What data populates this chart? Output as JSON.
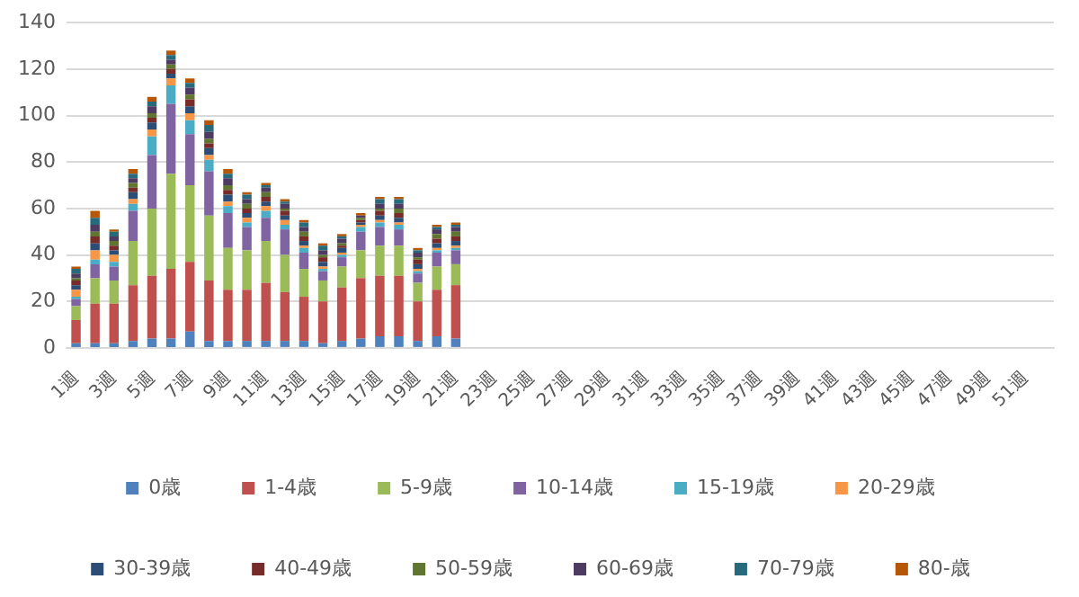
{
  "chart_data": {
    "type": "bar",
    "stacked": true,
    "grid": "y",
    "legend": "bottom",
    "categories": [
      "1週",
      null,
      "3週",
      null,
      "5週",
      null,
      "7週",
      null,
      "9週",
      null,
      "11週",
      null,
      "13週",
      null,
      "15週",
      null,
      "17週",
      null,
      "19週",
      null,
      "21週",
      null,
      "23週",
      null,
      "25週",
      null,
      "27週",
      null,
      "29週",
      null,
      "31週",
      null,
      "33週",
      null,
      "35週",
      null,
      "37週",
      null,
      "39週",
      null,
      "41週",
      null,
      "43週",
      null,
      "45週",
      null,
      "47週",
      null,
      "49週",
      null,
      "51週",
      null
    ],
    "ylim": [
      0,
      140
    ],
    "yticks": [
      0,
      20,
      40,
      60,
      80,
      100,
      120,
      140
    ],
    "series": [
      {
        "name": "0歳",
        "color": "#4f81bd",
        "values": [
          2,
          2,
          2,
          3,
          4,
          4,
          7,
          3,
          3,
          3,
          3,
          3,
          3,
          2,
          3,
          4,
          5,
          5,
          3,
          5,
          4,
          null,
          null,
          null,
          null,
          null,
          null,
          null,
          null,
          null,
          null,
          null,
          null,
          null,
          null,
          null,
          null,
          null,
          null,
          null,
          null,
          null,
          null,
          null,
          null,
          null,
          null,
          null,
          null,
          null,
          null,
          null
        ]
      },
      {
        "name": "1-4歳",
        "color": "#c0504d",
        "values": [
          10,
          17,
          17,
          24,
          27,
          30,
          30,
          26,
          22,
          22,
          25,
          21,
          19,
          18,
          23,
          26,
          26,
          26,
          17,
          20,
          23,
          null,
          null,
          null,
          null,
          null,
          null,
          null,
          null,
          null,
          null,
          null,
          null,
          null,
          null,
          null,
          null,
          null,
          null,
          null,
          null,
          null,
          null,
          null,
          null,
          null,
          null,
          null,
          null,
          null,
          null,
          null
        ]
      },
      {
        "name": "5-9歳",
        "color": "#9bbb59",
        "values": [
          6,
          11,
          10,
          19,
          29,
          41,
          33,
          28,
          18,
          17,
          18,
          16,
          12,
          9,
          9,
          12,
          13,
          13,
          8,
          10,
          9,
          null,
          null,
          null,
          null,
          null,
          null,
          null,
          null,
          null,
          null,
          null,
          null,
          null,
          null,
          null,
          null,
          null,
          null,
          null,
          null,
          null,
          null,
          null,
          null,
          null,
          null,
          null,
          null,
          null,
          null,
          null
        ]
      },
      {
        "name": "10-14歳",
        "color": "#8064a2",
        "values": [
          3,
          6,
          6,
          13,
          23,
          30,
          22,
          19,
          15,
          10,
          10,
          11,
          7,
          4,
          4,
          8,
          8,
          7,
          4,
          6,
          6,
          null,
          null,
          null,
          null,
          null,
          null,
          null,
          null,
          null,
          null,
          null,
          null,
          null,
          null,
          null,
          null,
          null,
          null,
          null,
          null,
          null,
          null,
          null,
          null,
          null,
          null,
          null,
          null,
          null,
          null,
          null
        ]
      },
      {
        "name": "15-19歳",
        "color": "#4bacc6",
        "values": [
          1,
          2,
          2,
          3,
          8,
          8,
          6,
          5,
          3,
          2,
          3,
          2,
          2,
          1,
          1,
          2,
          2,
          2,
          1,
          1,
          1,
          null,
          null,
          null,
          null,
          null,
          null,
          null,
          null,
          null,
          null,
          null,
          null,
          null,
          null,
          null,
          null,
          null,
          null,
          null,
          null,
          null,
          null,
          null,
          null,
          null,
          null,
          null,
          null,
          null,
          null,
          null
        ]
      },
      {
        "name": "20-29歳",
        "color": "#f79646",
        "values": [
          3,
          4,
          3,
          2,
          3,
          3,
          3,
          2,
          2,
          2,
          2,
          2,
          1,
          1,
          1,
          1,
          1,
          1,
          1,
          1,
          1,
          null,
          null,
          null,
          null,
          null,
          null,
          null,
          null,
          null,
          null,
          null,
          null,
          null,
          null,
          null,
          null,
          null,
          null,
          null,
          null,
          null,
          null,
          null,
          null,
          null,
          null,
          null,
          null,
          null,
          null,
          null
        ]
      },
      {
        "name": "30-39歳",
        "color": "#2c4d75",
        "values": [
          2,
          3,
          2,
          3,
          3,
          2,
          3,
          3,
          3,
          2,
          2,
          2,
          2,
          2,
          2,
          1,
          2,
          2,
          2,
          2,
          2,
          null,
          null,
          null,
          null,
          null,
          null,
          null,
          null,
          null,
          null,
          null,
          null,
          null,
          null,
          null,
          null,
          null,
          null,
          null,
          null,
          null,
          null,
          null,
          null,
          null,
          null,
          null,
          null,
          null,
          null,
          null
        ]
      },
      {
        "name": "40-49歳",
        "color": "#772c2a",
        "values": [
          2,
          3,
          2,
          2,
          2,
          2,
          3,
          2,
          2,
          2,
          2,
          2,
          2,
          2,
          1,
          1,
          2,
          2,
          2,
          2,
          2,
          null,
          null,
          null,
          null,
          null,
          null,
          null,
          null,
          null,
          null,
          null,
          null,
          null,
          null,
          null,
          null,
          null,
          null,
          null,
          null,
          null,
          null,
          null,
          null,
          null,
          null,
          null,
          null,
          null,
          null,
          null
        ]
      },
      {
        "name": "50-59歳",
        "color": "#5f7530",
        "values": [
          1,
          2,
          2,
          2,
          2,
          2,
          2,
          2,
          2,
          2,
          2,
          1,
          2,
          1,
          1,
          1,
          1,
          2,
          1,
          2,
          2,
          null,
          null,
          null,
          null,
          null,
          null,
          null,
          null,
          null,
          null,
          null,
          null,
          null,
          null,
          null,
          null,
          null,
          null,
          null,
          null,
          null,
          null,
          null,
          null,
          null,
          null,
          null,
          null,
          null,
          null,
          null
        ]
      },
      {
        "name": "60-69歳",
        "color": "#4d3b62",
        "values": [
          2,
          3,
          2,
          2,
          3,
          2,
          3,
          3,
          3,
          2,
          2,
          2,
          2,
          2,
          2,
          1,
          2,
          2,
          2,
          2,
          2,
          null,
          null,
          null,
          null,
          null,
          null,
          null,
          null,
          null,
          null,
          null,
          null,
          null,
          null,
          null,
          null,
          null,
          null,
          null,
          null,
          null,
          null,
          null,
          null,
          null,
          null,
          null,
          null,
          null,
          null,
          null
        ]
      },
      {
        "name": "70-79歳",
        "color": "#276a7c",
        "values": [
          2,
          3,
          2,
          2,
          2,
          2,
          2,
          3,
          2,
          2,
          1,
          1,
          2,
          2,
          1,
          0,
          2,
          2,
          1,
          1,
          1,
          null,
          null,
          null,
          null,
          null,
          null,
          null,
          null,
          null,
          null,
          null,
          null,
          null,
          null,
          null,
          null,
          null,
          null,
          null,
          null,
          null,
          null,
          null,
          null,
          null,
          null,
          null,
          null,
          null,
          null,
          null
        ]
      },
      {
        "name": "80-歳",
        "color": "#b65708",
        "values": [
          1,
          3,
          1,
          2,
          2,
          2,
          2,
          2,
          2,
          1,
          1,
          1,
          1,
          1,
          1,
          1,
          1,
          1,
          1,
          1,
          1,
          null,
          null,
          null,
          null,
          null,
          null,
          null,
          null,
          null,
          null,
          null,
          null,
          null,
          null,
          null,
          null,
          null,
          null,
          null,
          null,
          null,
          null,
          null,
          null,
          null,
          null,
          null,
          null,
          null,
          null,
          null
        ]
      }
    ]
  }
}
